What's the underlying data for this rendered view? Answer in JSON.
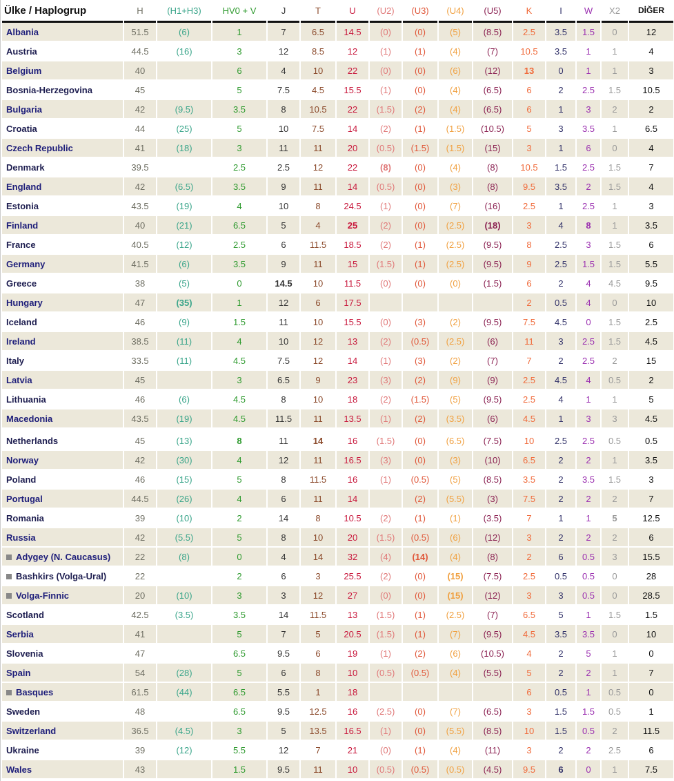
{
  "header": [
    "Ülke / Haplogrup",
    "H",
    "(H1+H3)",
    "HV0 + V",
    "J",
    "T",
    "U",
    "(U2)",
    "(U3)",
    "(U4)",
    "(U5)",
    "K",
    "I",
    "W",
    "X2",
    "DİĞER"
  ],
  "colors": [
    "#6e6e62",
    "#3aa58a",
    "#2e9a2e",
    "#333333",
    "#8b4a2b",
    "#c8183c",
    "#e07878",
    "#e0583a",
    "#f0a040",
    "#8b2252",
    "#f06a3a",
    "#33336a",
    "#9b30b0",
    "#999999",
    "#111111"
  ],
  "rows": [
    {
      "name": "Albania",
      "sh": 1,
      "v": [
        "51.5",
        "(6)",
        "1",
        "7",
        "6.5",
        "14.5",
        "(0)",
        "(0)",
        "(5)",
        "(8.5)",
        "2.5",
        "3.5",
        "1.5",
        "0",
        "12"
      ]
    },
    {
      "name": "Austria",
      "sh": 0,
      "v": [
        "44.5",
        "(16)",
        "3",
        "12",
        "8.5",
        "12",
        "(1)",
        "(1)",
        "(4)",
        "(7)",
        "10.5",
        "3.5",
        "1",
        "1",
        "4"
      ]
    },
    {
      "name": "Belgium",
      "sh": 1,
      "v": [
        "40",
        "",
        "6",
        "4",
        "10",
        "22",
        "(0)",
        "(0)",
        "(6)",
        "(12)",
        "13",
        "0",
        "1",
        "1",
        "3"
      ],
      "b": [
        10
      ]
    },
    {
      "name": "Bosnia-Herzegovina",
      "sh": 0,
      "v": [
        "45",
        "",
        "5",
        "7.5",
        "4.5",
        "15.5",
        "(1)",
        "(0)",
        "(4)",
        "(6.5)",
        "6",
        "2",
        "2.5",
        "1.5",
        "10.5"
      ]
    },
    {
      "name": "Bulgaria",
      "sh": 1,
      "v": [
        "42",
        "(9.5)",
        "3.5",
        "8",
        "10.5",
        "22",
        "(1.5)",
        "(2)",
        "(4)",
        "(6.5)",
        "6",
        "1",
        "3",
        "2",
        "2"
      ]
    },
    {
      "name": "Croatia",
      "sh": 0,
      "v": [
        "44",
        "(25)",
        "5",
        "10",
        "7.5",
        "14",
        "(2)",
        "(1)",
        "(1.5)",
        "(10.5)",
        "5",
        "3",
        "3.5",
        "1",
        "6.5"
      ]
    },
    {
      "name": "Czech Republic",
      "sh": 1,
      "v": [
        "41",
        "(18)",
        "3",
        "11",
        "11",
        "20",
        "(0.5)",
        "(1.5)",
        "(1.5)",
        "(15)",
        "3",
        "1",
        "6",
        "0",
        "4"
      ]
    },
    {
      "name": "Denmark",
      "sh": 0,
      "v": [
        "39.5",
        "",
        "2.5",
        "2.5",
        "12",
        "22",
        "(8)",
        "(0)",
        "(4)",
        "(8)",
        "10.5",
        "1.5",
        "2.5",
        "1.5",
        "7"
      ],
      "b": [
        6
      ]
    },
    {
      "name": "England",
      "sh": 1,
      "v": [
        "42",
        "(6.5)",
        "3.5",
        "9",
        "11",
        "14",
        "(0.5)",
        "(0)",
        "(3)",
        "(8)",
        "9.5",
        "3.5",
        "2",
        "1.5",
        "4"
      ]
    },
    {
      "name": "Estonia",
      "sh": 0,
      "v": [
        "43.5",
        "(19)",
        "4",
        "10",
        "8",
        "24.5",
        "(1)",
        "(0)",
        "(7)",
        "(16)",
        "2.5",
        "1",
        "2.5",
        "1",
        "3"
      ]
    },
    {
      "name": "Finland",
      "sh": 1,
      "v": [
        "40",
        "(21)",
        "6.5",
        "5",
        "4",
        "25",
        "(2)",
        "(0)",
        "(2.5)",
        "(18)",
        "3",
        "4",
        "8",
        "1",
        "3.5"
      ],
      "b": [
        5,
        9,
        12
      ]
    },
    {
      "name": "France",
      "sh": 0,
      "v": [
        "40.5",
        "(12)",
        "2.5",
        "6",
        "11.5",
        "18.5",
        "(2)",
        "(1)",
        "(2.5)",
        "(9.5)",
        "8",
        "2.5",
        "3",
        "1.5",
        "6"
      ]
    },
    {
      "name": "Germany",
      "sh": 1,
      "v": [
        "41.5",
        "(6)",
        "3.5",
        "9",
        "11",
        "15",
        "(1.5)",
        "(1)",
        "(2.5)",
        "(9.5)",
        "9",
        "2.5",
        "1.5",
        "1.5",
        "5.5"
      ]
    },
    {
      "name": "Greece",
      "sh": 0,
      "v": [
        "38",
        "(5)",
        "0",
        "14.5",
        "10",
        "11.5",
        "(0)",
        "(0)",
        "(0)",
        "(1.5)",
        "6",
        "2",
        "4",
        "4.5",
        "9.5"
      ],
      "b": [
        3
      ]
    },
    {
      "name": "Hungary",
      "sh": 1,
      "v": [
        "47",
        "(35)",
        "1",
        "12",
        "6",
        "17.5",
        "",
        "",
        "",
        "",
        "2",
        "0.5",
        "4",
        "0",
        "10"
      ],
      "b": [
        1
      ]
    },
    {
      "name": "Iceland",
      "sh": 0,
      "v": [
        "46",
        "(9)",
        "1.5",
        "11",
        "10",
        "15.5",
        "(0)",
        "(3)",
        "(2)",
        "(9.5)",
        "7.5",
        "4.5",
        "0",
        "1.5",
        "2.5"
      ]
    },
    {
      "name": "Ireland",
      "sh": 1,
      "v": [
        "38.5",
        "(11)",
        "4",
        "10",
        "12",
        "13",
        "(2)",
        "(0.5)",
        "(2.5)",
        "(6)",
        "11",
        "3",
        "2.5",
        "1.5",
        "4.5"
      ]
    },
    {
      "name": "Italy",
      "sh": 0,
      "v": [
        "33.5",
        "(11)",
        "4.5",
        "7.5",
        "12",
        "14",
        "(1)",
        "(3)",
        "(2)",
        "(7)",
        "7",
        "2",
        "2.5",
        "2",
        "15"
      ]
    },
    {
      "name": "Latvia",
      "sh": 1,
      "v": [
        "45",
        "",
        "3",
        "6.5",
        "9",
        "23",
        "(3)",
        "(2)",
        "(9)",
        "(9)",
        "2.5",
        "4.5",
        "4",
        "0.5",
        "2"
      ]
    },
    {
      "name": "Lithuania",
      "sh": 0,
      "v": [
        "46",
        "(6)",
        "4.5",
        "8",
        "10",
        "18",
        "(2)",
        "(1.5)",
        "(5)",
        "(9.5)",
        "2.5",
        "4",
        "1",
        "1",
        "5"
      ]
    },
    {
      "name": "Macedonia",
      "sh": 1,
      "v": [
        "43.5",
        "(19)",
        "4.5",
        "11.5",
        "11",
        "13.5",
        "(1)",
        "(2)",
        "(3.5)",
        "(6)",
        "4.5",
        "1",
        "3",
        "3",
        "4.5"
      ]
    },
    {
      "name": "Netherlands",
      "sh": 0,
      "gap": 1,
      "v": [
        "45",
        "(13)",
        "8",
        "11",
        "14",
        "16",
        "(1.5)",
        "(0)",
        "(6.5)",
        "(7.5)",
        "10",
        "2.5",
        "2.5",
        "0.5",
        "0.5"
      ],
      "b": [
        2,
        4
      ]
    },
    {
      "name": "Norway",
      "sh": 1,
      "v": [
        "42",
        "(30)",
        "4",
        "12",
        "11",
        "16.5",
        "(3)",
        "(0)",
        "(3)",
        "(10)",
        "6.5",
        "2",
        "2",
        "1",
        "3.5"
      ]
    },
    {
      "name": "Poland",
      "sh": 0,
      "v": [
        "46",
        "(15)",
        "5",
        "8",
        "11.5",
        "16",
        "(1)",
        "(0.5)",
        "(5)",
        "(8.5)",
        "3.5",
        "2",
        "3.5",
        "1.5",
        "3"
      ]
    },
    {
      "name": "Portugal",
      "sh": 1,
      "v": [
        "44.5",
        "(26)",
        "4",
        "6",
        "11",
        "14",
        "",
        "(2)",
        "(5.5)",
        "(3)",
        "7.5",
        "2",
        "2",
        "2",
        "7"
      ]
    },
    {
      "name": "Romania",
      "sh": 0,
      "v": [
        "39",
        "(10)",
        "2",
        "14",
        "8",
        "10.5",
        "(2)",
        "(1)",
        "(1)",
        "(3.5)",
        "7",
        "1",
        "1",
        "5",
        "12.5"
      ],
      "b": [
        13
      ]
    },
    {
      "name": "Russia",
      "sh": 1,
      "v": [
        "42",
        "(5.5)",
        "5",
        "8",
        "10",
        "20",
        "(1.5)",
        "(0.5)",
        "(6)",
        "(12)",
        "3",
        "2",
        "2",
        "2",
        "6"
      ]
    },
    {
      "name": "Adygey (N. Caucasus)",
      "flag": 1,
      "sh": 1,
      "v": [
        "22",
        "(8)",
        "0",
        "4",
        "14",
        "32",
        "(4)",
        "(14)",
        "(4)",
        "(8)",
        "2",
        "6",
        "0.5",
        "3",
        "15.5"
      ],
      "b": [
        7
      ]
    },
    {
      "name": "Bashkirs (Volga-Ural)",
      "flag": 1,
      "sh": 0,
      "v": [
        "22",
        "",
        "2",
        "6",
        "3",
        "25.5",
        "(2)",
        "(0)",
        "(15)",
        "(7.5)",
        "2.5",
        "0.5",
        "0.5",
        "0",
        "28"
      ],
      "b": [
        8
      ]
    },
    {
      "name": "Volga-Finnic",
      "flag": 1,
      "sh": 1,
      "v": [
        "20",
        "(10)",
        "3",
        "3",
        "12",
        "27",
        "(0)",
        "(0)",
        "(15)",
        "(12)",
        "3",
        "3",
        "0.5",
        "0",
        "28.5"
      ],
      "b": [
        8
      ]
    },
    {
      "name": "Scotland",
      "sh": 0,
      "v": [
        "42.5",
        "(3.5)",
        "3.5",
        "14",
        "11.5",
        "13",
        "(1.5)",
        "(1)",
        "(2.5)",
        "(7)",
        "6.5",
        "5",
        "1",
        "1.5",
        "1.5"
      ]
    },
    {
      "name": "Serbia",
      "sh": 1,
      "v": [
        "41",
        "",
        "5",
        "7",
        "5",
        "20.5",
        "(1.5)",
        "(1)",
        "(7)",
        "(9.5)",
        "4.5",
        "3.5",
        "3.5",
        "0",
        "10"
      ]
    },
    {
      "name": "Slovenia",
      "sh": 0,
      "v": [
        "47",
        "",
        "6.5",
        "9.5",
        "6",
        "19",
        "(1)",
        "(2)",
        "(6)",
        "(10.5)",
        "4",
        "2",
        "5",
        "1",
        "0"
      ]
    },
    {
      "name": "Spain",
      "sh": 1,
      "v": [
        "54",
        "(28)",
        "5",
        "6",
        "8",
        "10",
        "(0.5)",
        "(0.5)",
        "(4)",
        "(5.5)",
        "5",
        "2",
        "2",
        "1",
        "7"
      ]
    },
    {
      "name": "Basques",
      "flag": 1,
      "sh": 1,
      "v": [
        "61.5",
        "(44)",
        "6.5",
        "5.5",
        "1",
        "18",
        "",
        "",
        "",
        "",
        "6",
        "0.5",
        "1",
        "0.5",
        "0"
      ]
    },
    {
      "name": "Sweden",
      "sh": 0,
      "v": [
        "48",
        "",
        "6.5",
        "9.5",
        "12.5",
        "16",
        "(2.5)",
        "(0)",
        "(7)",
        "(6.5)",
        "3",
        "1.5",
        "1.5",
        "0.5",
        "1"
      ]
    },
    {
      "name": "Switzerland",
      "sh": 1,
      "v": [
        "36.5",
        "(4.5)",
        "3",
        "5",
        "13.5",
        "16.5",
        "(1)",
        "(0)",
        "(5.5)",
        "(8.5)",
        "10",
        "1.5",
        "0.5",
        "2",
        "11.5"
      ]
    },
    {
      "name": "Ukraine",
      "sh": 0,
      "v": [
        "39",
        "(12)",
        "5.5",
        "12",
        "7",
        "21",
        "(0)",
        "(1)",
        "(4)",
        "(11)",
        "3",
        "2",
        "2",
        "2.5",
        "6"
      ]
    },
    {
      "name": "Wales",
      "sh": 1,
      "v": [
        "43",
        "",
        "1.5",
        "9.5",
        "11",
        "10",
        "(0.5)",
        "(0.5)",
        "(0.5)",
        "(4.5)",
        "9.5",
        "6",
        "0",
        "1",
        "7.5"
      ],
      "b": [
        11
      ]
    }
  ]
}
